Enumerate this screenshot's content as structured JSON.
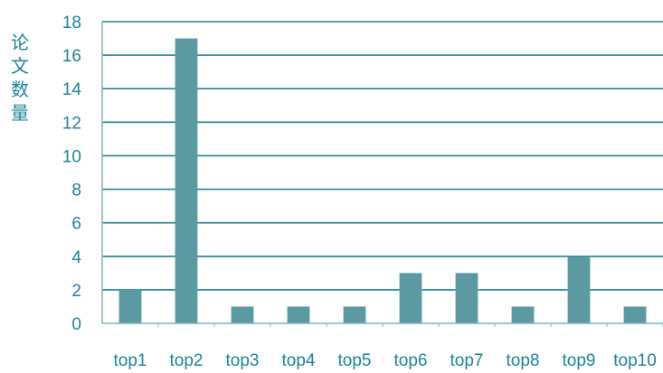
{
  "chart_data": {
    "type": "bar",
    "title": "",
    "xlabel": "",
    "ylabel": "论文数量",
    "categories": [
      "top1",
      "top2",
      "top3",
      "top4",
      "top5",
      "top6",
      "top7",
      "top8",
      "top9",
      "top10"
    ],
    "values": [
      2,
      17,
      1,
      1,
      1,
      3,
      3,
      1,
      4,
      1
    ],
    "ylim": [
      0,
      18
    ],
    "yticks": [
      0,
      2,
      4,
      6,
      8,
      10,
      12,
      14,
      16,
      18
    ],
    "grid": true,
    "legend": "none",
    "colors": {
      "bar": "#5b9aa3",
      "grid": "#1b8496",
      "axis_text": "#1b8496",
      "axis_line": "#7fb3bc"
    }
  }
}
